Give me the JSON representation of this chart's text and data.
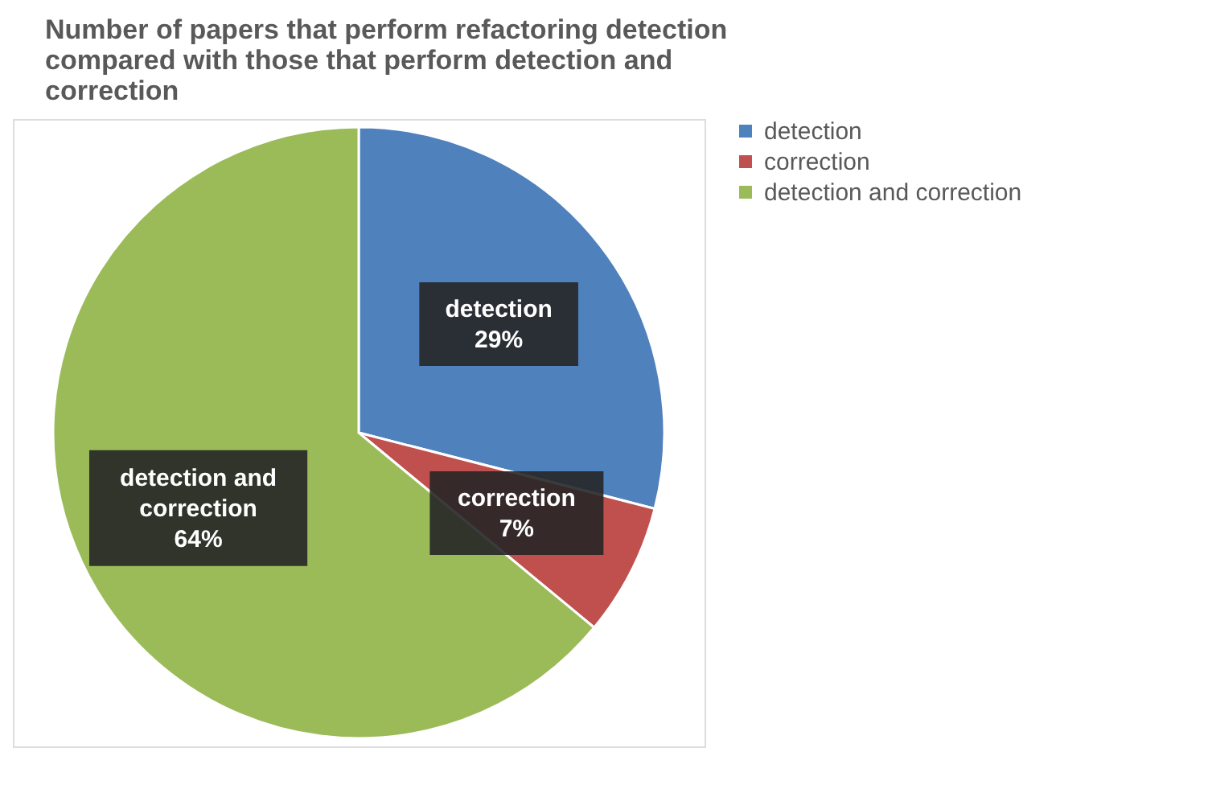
{
  "chart_data": {
    "type": "pie",
    "title": "Number of papers that perform refactoring detection compared with those that perform detection and correction",
    "categories": [
      "detection",
      "correction",
      "detection and correction"
    ],
    "values": [
      29,
      7,
      64
    ],
    "colors": [
      "#4f81bd",
      "#c0504d",
      "#9bbb59"
    ],
    "value_labels": [
      "29%",
      "7%",
      "64%"
    ],
    "legend": "right"
  }
}
